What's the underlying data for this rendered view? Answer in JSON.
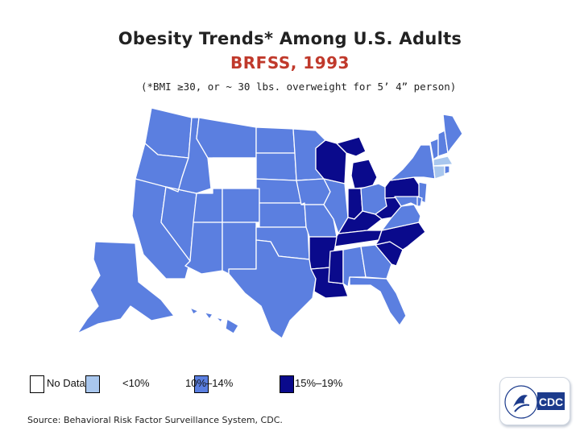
{
  "title": "Obesity Trends* Among U.S. Adults",
  "subtitle": "BRFSS, 1993",
  "note": "(*BMI ≥30, or ~ 30 lbs. overweight for 5’ 4” person)",
  "legend": [
    {
      "label": "No Data",
      "color": "#ffffff"
    },
    {
      "label": "<10%",
      "color": "#a9c7ee"
    },
    {
      "label": "10%–14%",
      "color": "#5b7fe0"
    },
    {
      "label": "15%–19%",
      "color": "#0a0a8c"
    }
  ],
  "categories": {
    "no_data": [
      "WY"
    ],
    "lt10": [
      "MA",
      "CT"
    ],
    "p10_14": [
      "WA",
      "OR",
      "CA",
      "NV",
      "ID",
      "MT",
      "UT",
      "AZ",
      "CO",
      "NM",
      "ND",
      "SD",
      "NE",
      "KS",
      "OK",
      "TX",
      "MN",
      "IA",
      "MO",
      "IL",
      "OH",
      "AL",
      "GA",
      "FL",
      "VA",
      "NY",
      "ME",
      "VT",
      "NH",
      "RI",
      "NJ",
      "MD",
      "DE",
      "AK",
      "HI"
    ],
    "p15_19": [
      "WI",
      "MI",
      "IN",
      "KY",
      "TN",
      "AR",
      "LA",
      "MS",
      "NC",
      "SC",
      "WV",
      "PA"
    ]
  },
  "source": "Source: Behavioral Risk Factor Surveillance System, CDC.",
  "logo": {
    "text": "CDC"
  }
}
